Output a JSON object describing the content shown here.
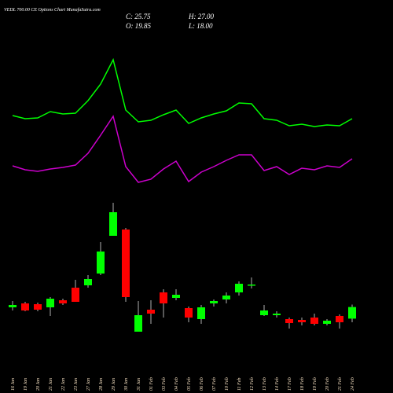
{
  "chart_data": {
    "type": "candlestick",
    "title": "VEDL 700.00 CE Options Chart MunafaSutra.com",
    "close_text": "C: 25.75",
    "high_text": "H: 27.00",
    "open_text": "O: 19.85",
    "low_text": "L: 18.00",
    "categories": [
      "16 Jan",
      "19 Jan",
      "20 Jan",
      "21 Jan",
      "22 Jan",
      "23 Jan",
      "27 Jan",
      "28 Jan",
      "29 Jan",
      "30 Jan",
      "31 Jan",
      "01 Feb",
      "03 Feb",
      "04 Feb",
      "05 Feb",
      "06 Feb",
      "07 Feb",
      "10 Feb",
      "11 Feb",
      "12 Feb",
      "13 Feb",
      "14 Feb",
      "17 Feb",
      "18 Feb",
      "19 Feb",
      "20 Feb",
      "21 Feb",
      "24 Feb"
    ],
    "open": [
      25.6,
      27.6,
      27.2,
      25.6,
      29.2,
      35.6,
      36.8,
      42.8,
      62,
      65.2,
      13.2,
      24.4,
      33.2,
      30.4,
      25.2,
      19.6,
      27.6,
      29.6,
      33.2,
      36.8,
      21.6,
      21.6,
      19.6,
      19.2,
      20.4,
      17.2,
      21.2,
      19.85
    ],
    "close": [
      26.8,
      24,
      24.4,
      30,
      27.6,
      28.4,
      40,
      54,
      74,
      30.8,
      21.6,
      22.4,
      27.6,
      32,
      20.4,
      25.6,
      28.8,
      31.6,
      37.6,
      37.2,
      24,
      22.4,
      17.6,
      18,
      17.2,
      18.8,
      18,
      25.75
    ],
    "high": [
      28.8,
      28.4,
      28,
      30.8,
      30,
      39.6,
      42,
      58.8,
      78.8,
      66,
      28.8,
      29.2,
      34.8,
      34.8,
      26,
      26.8,
      29.6,
      33.2,
      38.8,
      40.8,
      26.8,
      23.6,
      20.4,
      20.4,
      22.4,
      19.6,
      22,
      27
    ],
    "low": [
      24,
      23.6,
      23.6,
      21.2,
      26.8,
      28.4,
      35.6,
      42,
      62,
      28.4,
      13.2,
      17.2,
      20.4,
      29.2,
      18,
      17.2,
      26,
      27.6,
      31.6,
      35.2,
      21.2,
      20.4,
      14.8,
      16.4,
      16.4,
      16.4,
      14.8,
      18
    ],
    "up_color": "#00ff00",
    "down_color": "#ff0000",
    "series": [
      {
        "color": "#00ff00",
        "values": [
          123.2,
          121.6,
          122,
          125.2,
          124,
          124.4,
          130.8,
          139.2,
          151.6,
          126,
          120,
          120.8,
          123.6,
          126,
          119.2,
          122,
          124,
          125.6,
          129.6,
          129.2,
          121.6,
          120.8,
          118,
          118.8,
          117.6,
          118.4,
          118,
          121.6
        ]
      },
      {
        "color": "#cc00cc",
        "values": [
          97.6,
          95.6,
          94.8,
          96,
          96.8,
          98,
          104,
          113.2,
          122.8,
          97.2,
          89.2,
          90.8,
          96,
          100,
          89.6,
          94.4,
          97.2,
          100.4,
          103.2,
          103.2,
          95.2,
          97.2,
          93.2,
          96.4,
          95.6,
          97.6,
          96.8,
          101.2
        ]
      }
    ],
    "ylim": [
      10,
      160
    ]
  }
}
